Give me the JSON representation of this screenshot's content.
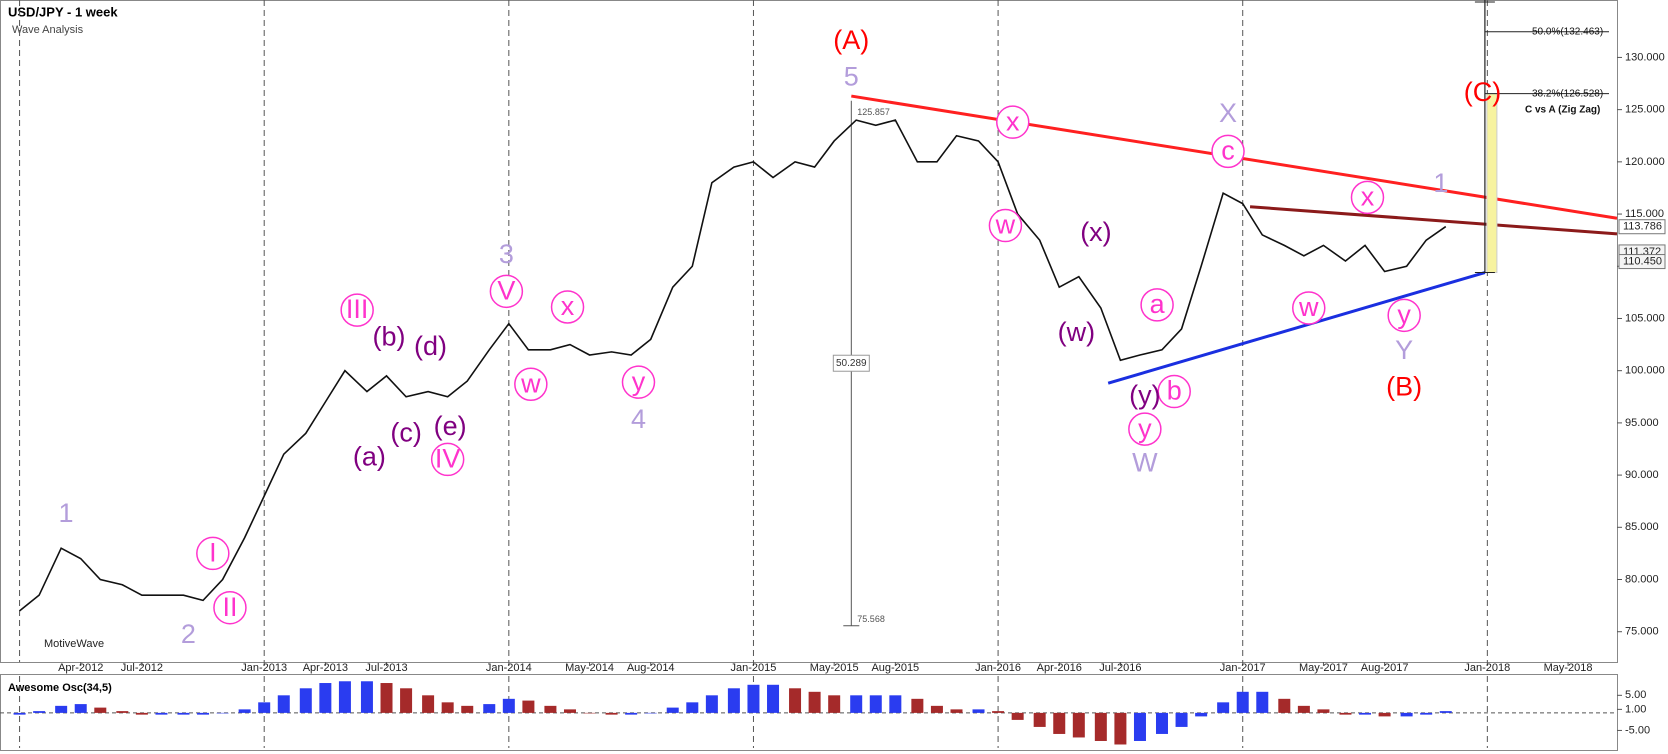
{
  "chart_data": {
    "type": "line",
    "title": "USD/JPY - 1 week",
    "subtitle": "Wave Analysis",
    "watermark": "MotiveWave",
    "color": "#111111",
    "x": [
      2012.0,
      2012.08,
      2012.17,
      2012.25,
      2012.33,
      2012.42,
      2012.5,
      2012.58,
      2012.67,
      2012.75,
      2012.83,
      2012.92,
      2013.0,
      2013.08,
      2013.17,
      2013.25,
      2013.33,
      2013.42,
      2013.5,
      2013.58,
      2013.67,
      2013.75,
      2013.83,
      2013.92,
      2014.0,
      2014.08,
      2014.17,
      2014.25,
      2014.33,
      2014.42,
      2014.5,
      2014.58,
      2014.67,
      2014.75,
      2014.83,
      2014.92,
      2015.0,
      2015.08,
      2015.17,
      2015.25,
      2015.33,
      2015.42,
      2015.5,
      2015.58,
      2015.67,
      2015.75,
      2015.83,
      2015.92,
      2016.0,
      2016.08,
      2016.17,
      2016.25,
      2016.33,
      2016.42,
      2016.5,
      2016.58,
      2016.67,
      2016.75,
      2016.83,
      2016.92,
      2017.0,
      2017.08,
      2017.17,
      2017.25,
      2017.33,
      2017.42,
      2017.5,
      2017.58,
      2017.67,
      2017.75,
      2017.83
    ],
    "values": [
      77,
      78.5,
      83,
      82,
      80,
      79.5,
      78.5,
      78.5,
      78.5,
      78,
      80,
      84,
      88,
      92,
      94,
      97,
      100,
      98,
      99.5,
      97.5,
      98,
      97.5,
      99,
      102,
      104.5,
      102,
      102,
      102.5,
      101.5,
      101.8,
      101.5,
      103,
      108,
      110,
      118,
      119.5,
      120,
      118.5,
      120,
      119.5,
      122,
      124,
      123.5,
      124,
      120,
      120,
      122.5,
      122,
      120,
      115,
      112.5,
      108,
      109,
      106,
      101,
      101.5,
      102,
      104,
      110,
      117,
      116,
      113,
      112,
      111,
      112,
      110.5,
      112,
      109.5,
      110,
      112.5,
      113.8
    ],
    "xlim": [
      2011.92,
      2018.53
    ],
    "xticks": [
      {
        "value": 2012.25,
        "label": "Apr-2012"
      },
      {
        "value": 2012.5,
        "label": "Jul-2012"
      },
      {
        "value": 2013.0,
        "label": "Jan-2013"
      },
      {
        "value": 2013.25,
        "label": "Apr-2013"
      },
      {
        "value": 2013.5,
        "label": "Jul-2013"
      },
      {
        "value": 2014.0,
        "label": "Jan-2014"
      },
      {
        "value": 2014.33,
        "label": "May-2014"
      },
      {
        "value": 2014.58,
        "label": "Aug-2014"
      },
      {
        "value": 2015.0,
        "label": "Jan-2015"
      },
      {
        "value": 2015.33,
        "label": "May-2015"
      },
      {
        "value": 2015.58,
        "label": "Aug-2015"
      },
      {
        "value": 2016.0,
        "label": "Jan-2016"
      },
      {
        "value": 2016.25,
        "label": "Apr-2016"
      },
      {
        "value": 2016.5,
        "label": "Jul-2016"
      },
      {
        "value": 2017.0,
        "label": "Jan-2017"
      },
      {
        "value": 2017.33,
        "label": "May-2017"
      },
      {
        "value": 2017.58,
        "label": "Aug-2017"
      },
      {
        "value": 2018.0,
        "label": "Jan-2018"
      },
      {
        "value": 2018.33,
        "label": "May-2018"
      }
    ],
    "grid_xticks": [
      2012.0,
      2013.0,
      2014.0,
      2015.0,
      2016.0,
      2017.0,
      2018.0
    ],
    "ylim": [
      72.1,
      135.5
    ],
    "yticks": [
      {
        "value": 75,
        "label": "75.000"
      },
      {
        "value": 80,
        "label": "80.000"
      },
      {
        "value": 85,
        "label": "85.000"
      },
      {
        "value": 90,
        "label": "90.000"
      },
      {
        "value": 95,
        "label": "95.000"
      },
      {
        "value": 100,
        "label": "100.000"
      },
      {
        "value": 105,
        "label": "105.000"
      },
      {
        "value": 110,
        "label": "110.000"
      },
      {
        "value": 115,
        "label": "115.000"
      },
      {
        "value": 120,
        "label": "120.000"
      },
      {
        "value": 125,
        "label": "125.000"
      },
      {
        "value": 130,
        "label": "130.000"
      }
    ],
    "last_prices": [
      {
        "value": 113.786,
        "label": "113.786"
      },
      {
        "value": 111.372,
        "label": "111.372"
      },
      {
        "value": 110.45,
        "label": "110.450"
      }
    ],
    "styles": {
      "circle": "#ff33cc",
      "lavender": "#b39ddb",
      "purple": "#800080",
      "red": "#ff0000"
    },
    "annotations": [
      {
        "text": "1",
        "x": 2012.19,
        "y": 86.3,
        "style": "lavender"
      },
      {
        "text": "2",
        "x": 2012.69,
        "y": 74.7,
        "style": "lavender"
      },
      {
        "text": "I",
        "x": 2012.79,
        "y": 82.5,
        "style": "circle"
      },
      {
        "text": "II",
        "x": 2012.86,
        "y": 77.3,
        "style": "circle"
      },
      {
        "text": "III",
        "x": 2013.38,
        "y": 105.8,
        "style": "circle"
      },
      {
        "text": "(b)",
        "x": 2013.51,
        "y": 103.2,
        "style": "purple"
      },
      {
        "text": "(d)",
        "x": 2013.68,
        "y": 102.3,
        "style": "purple"
      },
      {
        "text": "(a)",
        "x": 2013.43,
        "y": 91.7,
        "style": "purple"
      },
      {
        "text": "(c)",
        "x": 2013.58,
        "y": 94,
        "style": "purple"
      },
      {
        "text": "(e)",
        "x": 2013.76,
        "y": 94.6,
        "style": "purple"
      },
      {
        "text": "IV",
        "x": 2013.75,
        "y": 91.5,
        "style": "circle"
      },
      {
        "text": "3",
        "x": 2013.99,
        "y": 111.1,
        "style": "lavender"
      },
      {
        "text": "V",
        "x": 2013.99,
        "y": 107.6,
        "style": "circle"
      },
      {
        "text": "x",
        "x": 2014.24,
        "y": 106.1,
        "style": "circle"
      },
      {
        "text": "w",
        "x": 2014.09,
        "y": 98.7,
        "style": "circle"
      },
      {
        "text": "y",
        "x": 2014.53,
        "y": 98.9,
        "style": "circle"
      },
      {
        "text": "4",
        "x": 2014.53,
        "y": 95.3,
        "style": "lavender"
      },
      {
        "text": "(A)",
        "x": 2015.4,
        "y": 131.6,
        "style": "red"
      },
      {
        "text": "5",
        "x": 2015.4,
        "y": 128.1,
        "style": "lavender"
      },
      {
        "text": "x",
        "x": 2016.06,
        "y": 123.8,
        "style": "circle"
      },
      {
        "text": "w",
        "x": 2016.03,
        "y": 113.9,
        "style": "circle"
      },
      {
        "text": "(x)",
        "x": 2016.4,
        "y": 113.2,
        "style": "purple"
      },
      {
        "text": "(w)",
        "x": 2016.32,
        "y": 103.6,
        "style": "purple"
      },
      {
        "text": "a",
        "x": 2016.65,
        "y": 106.3,
        "style": "circle"
      },
      {
        "text": "b",
        "x": 2016.72,
        "y": 98,
        "style": "circle"
      },
      {
        "text": "(y)",
        "x": 2016.6,
        "y": 97.6,
        "style": "purple"
      },
      {
        "text": "y",
        "x": 2016.6,
        "y": 94.4,
        "style": "circle"
      },
      {
        "text": "W",
        "x": 2016.6,
        "y": 91.1,
        "style": "lavender"
      },
      {
        "text": "X",
        "x": 2016.94,
        "y": 124.6,
        "style": "lavender"
      },
      {
        "text": "c",
        "x": 2016.94,
        "y": 121,
        "style": "circle"
      },
      {
        "text": "x",
        "x": 2017.51,
        "y": 116.6,
        "style": "circle"
      },
      {
        "text": "1",
        "x": 2017.81,
        "y": 117.9,
        "style": "lavender"
      },
      {
        "text": "w",
        "x": 2017.27,
        "y": 106,
        "style": "circle"
      },
      {
        "text": "y",
        "x": 2017.66,
        "y": 105.3,
        "style": "circle"
      },
      {
        "text": "Y",
        "x": 2017.66,
        "y": 101.9,
        "style": "lavender"
      },
      {
        "text": "(B)",
        "x": 2017.66,
        "y": 98.4,
        "style": "red"
      },
      {
        "text": "(C)",
        "x": 2017.98,
        "y": 126.6,
        "style": "red"
      }
    ],
    "trendlines": [
      {
        "x": [
          2015.4,
          2018.53
        ],
        "y": [
          126.3,
          114.6
        ],
        "color": "#ff2020"
      },
      {
        "x": [
          2017.03,
          2018.53
        ],
        "y": [
          115.7,
          113.1
        ],
        "color": "#8b1a1a"
      },
      {
        "x": [
          2016.45,
          2017.99
        ],
        "y": [
          98.8,
          109.4
        ],
        "color": "#1a2fe0"
      }
    ],
    "fib_levels": [
      {
        "value": 132.463,
        "label": "50.0%(132.463)"
      },
      {
        "value": 126.528,
        "label": "38.2%(126.528)"
      }
    ],
    "fib_title": "C vs A (Zig Zag)",
    "measure": {
      "x": 2015.4,
      "high": 125.857,
      "low": 75.568,
      "range": 50.289
    },
    "oscillator": {
      "title": "Awesome Osc(34,5)",
      "values": [
        -0.5,
        0.5,
        2,
        2.5,
        1.5,
        0.5,
        -0.5,
        -0.5,
        -0.5,
        -0.5,
        0,
        1,
        3,
        5,
        7,
        8.5,
        9,
        9,
        8.5,
        7,
        5,
        3,
        2,
        2.5,
        4,
        3.5,
        2,
        1,
        0,
        -0.5,
        -0.5,
        0,
        1.5,
        3,
        5,
        7,
        8,
        8,
        7,
        6,
        5,
        5,
        5,
        5,
        4,
        2,
        1,
        1,
        0.5,
        -2,
        -4,
        -6,
        -7,
        -8,
        -9,
        -8,
        -6,
        -4,
        -1,
        3,
        6,
        6,
        4,
        2,
        1,
        -0.5,
        -0.5,
        -1,
        -1,
        -0.5,
        0.5
      ],
      "ylim": [
        -10,
        10.5
      ],
      "yticks": [
        {
          "value": 5,
          "label": "5.00"
        },
        {
          "value": 1,
          "label": "1.00"
        },
        {
          "value": -5,
          "label": "-5.00"
        }
      ],
      "up_color": "#2a3cf0",
      "down_color": "#a52a2a"
    }
  }
}
